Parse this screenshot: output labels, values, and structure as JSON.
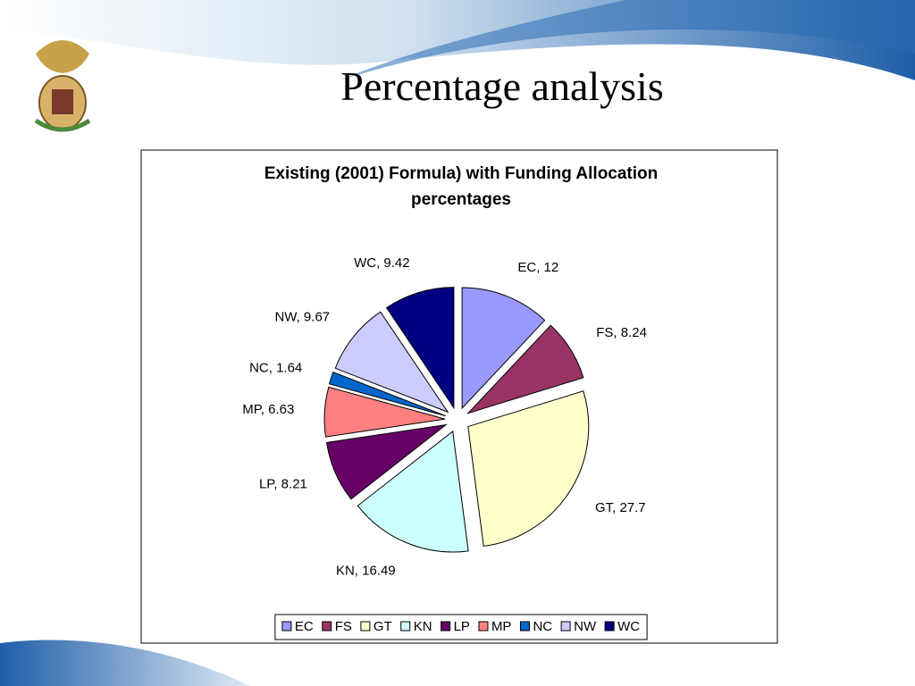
{
  "slide_title": "Percentage analysis",
  "chart_data": {
    "type": "pie",
    "title": "Existing (2001) Formula) with Funding Allocation percentages",
    "categories": [
      "EC",
      "FS",
      "GT",
      "KN",
      "LP",
      "MP",
      "NC",
      "NW",
      "WC"
    ],
    "values": [
      12,
      8.24,
      27.7,
      16.49,
      8.21,
      6.63,
      1.64,
      9.67,
      9.42
    ],
    "value_labels": [
      "EC, 12",
      "FS, 8.24",
      "GT, 27.7",
      "KN, 16.49",
      "LP, 8.21",
      "MP, 6.63",
      "NC, 1.64",
      "NW, 9.67",
      "WC, 9.42"
    ],
    "colors": [
      "#9999ff",
      "#993366",
      "#ffffcc",
      "#ccffff",
      "#660066",
      "#ff8080",
      "#0066cc",
      "#ccccff",
      "#000080"
    ],
    "legend": "bottom"
  }
}
